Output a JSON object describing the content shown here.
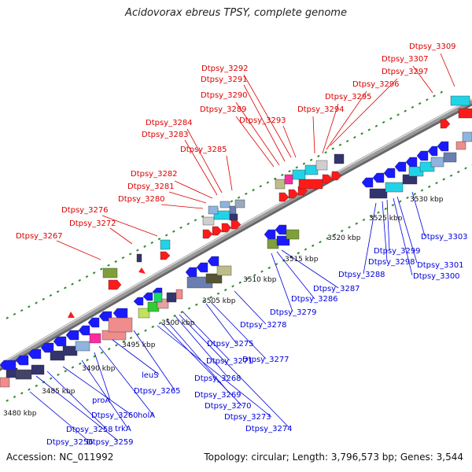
{
  "title": "Acidovorax ebreus TPSY, complete genome",
  "footer": {
    "accession": "Accession: NC_011992",
    "summary": "Topology: circular; Length: 3,796,573 bp; Genes: 3,544"
  },
  "colors": {
    "forward_label": "#dd0000",
    "reverse_label": "#0000dd",
    "backbone": "#999999",
    "dots": "#2e8b2e"
  },
  "ticks": [
    "3480 kbp",
    "3485 kbp",
    "3490 kbp",
    "3495 kbp",
    "3500 kbp",
    "3505 kbp",
    "3510 kbp",
    "3515 kbp",
    "3520 kbp",
    "3525 kbp",
    "3530 kbp"
  ],
  "forward_labels": [
    "Dtpsy_3309",
    "Dtpsy_3307",
    "Dtpsy_3297",
    "Dtpsy_3296",
    "Dtpsy_3295",
    "Dtpsy_3294",
    "Dtpsy_3293",
    "Dtpsy_3292",
    "Dtpsy_3291",
    "Dtpsy_3290",
    "Dtpsy_3289",
    "Dtpsy_3285",
    "Dtpsy_3284",
    "Dtpsy_3283",
    "Dtpsy_3282",
    "Dtpsy_3281",
    "Dtpsy_3280",
    "Dtpsy_3276",
    "Dtpsy_3272",
    "Dtpsy_3267"
  ],
  "reverse_labels": [
    "Dtpsy_3303",
    "Dtpsy_3301",
    "Dtpsy_3300",
    "Dtpsy_3299",
    "Dtpsy_3298",
    "Dtpsy_3288",
    "Dtpsy_3287",
    "Dtpsy_3286",
    "Dtpsy_3279",
    "Dtpsy_3278",
    "Dtpsy_3277",
    "Dtpsy_3275",
    "Dtpsy_3271",
    "Dtpsy_3268",
    "Dtpsy_3269",
    "Dtpsy_3270",
    "Dtpsy_3273",
    "Dtpsy_3274",
    "Dtpsy_3265",
    "leuS",
    "holA",
    "proA",
    "trkA",
    "Dtpsy_3260",
    "Dtpsy_3258",
    "Dtpsy_3259",
    "Dtpsy_3256"
  ]
}
